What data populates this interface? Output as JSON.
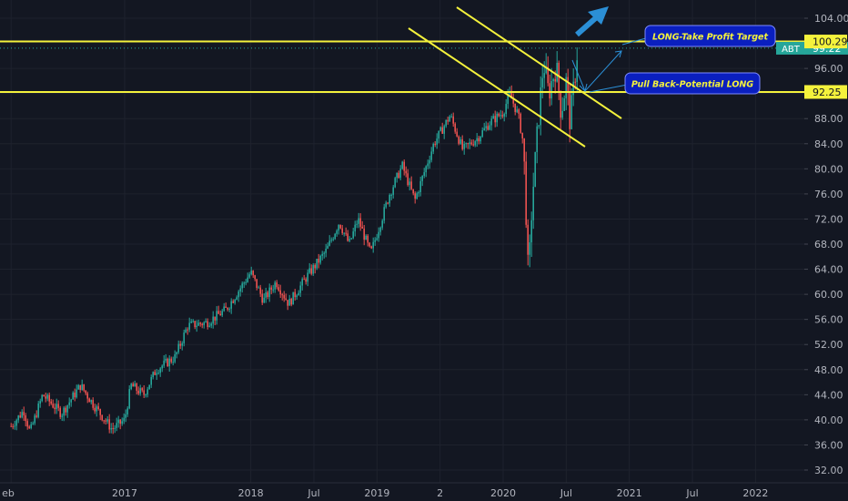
{
  "chart_data": {
    "type": "candlestick",
    "symbol": "ABT",
    "last_price": "99.22",
    "y_range": [
      30.0,
      106.0
    ],
    "y_ticks": [
      "104.00",
      "96.00",
      "92.00",
      "88.00",
      "84.00",
      "80.00",
      "76.00",
      "72.00",
      "68.00",
      "64.00",
      "60.00",
      "56.00",
      "52.00",
      "48.00",
      "44.00",
      "40.00",
      "36.00",
      "32.00"
    ],
    "x_ticks": [
      "eb",
      "2017",
      "2018",
      "Jul",
      "2019",
      "2",
      "2020",
      "Jul",
      "2021",
      "Jul",
      "2022"
    ],
    "x_tick_dates": [
      2016.1,
      2017.0,
      2018.0,
      2018.5,
      2019.0,
      2019.5,
      2020.0,
      2020.5,
      2021.0,
      2021.5,
      2022.0
    ],
    "levels": [
      {
        "label": "100.29",
        "value": 100.29
      },
      {
        "label": "92.25",
        "value": 92.25
      }
    ],
    "price_path": [
      [
        2016.1,
        39.0
      ],
      [
        2016.2,
        41.5
      ],
      [
        2016.25,
        38.0
      ],
      [
        2016.35,
        44.0
      ],
      [
        2016.5,
        41.0
      ],
      [
        2016.65,
        45.5
      ],
      [
        2016.75,
        42.5
      ],
      [
        2016.9,
        38.5
      ],
      [
        2017.0,
        40.0
      ],
      [
        2017.05,
        45.5
      ],
      [
        2017.15,
        44.0
      ],
      [
        2017.25,
        48.0
      ],
      [
        2017.4,
        50.0
      ],
      [
        2017.5,
        55.0
      ],
      [
        2017.65,
        55.5
      ],
      [
        2017.8,
        57.5
      ],
      [
        2017.9,
        60.5
      ],
      [
        2018.0,
        63.5
      ],
      [
        2018.1,
        59.0
      ],
      [
        2018.2,
        62.0
      ],
      [
        2018.3,
        58.5
      ],
      [
        2018.45,
        63.0
      ],
      [
        2018.6,
        67.0
      ],
      [
        2018.7,
        71.5
      ],
      [
        2018.78,
        68.0
      ],
      [
        2018.85,
        72.0
      ],
      [
        2018.95,
        66.5
      ],
      [
        2019.1,
        76.0
      ],
      [
        2019.2,
        80.5
      ],
      [
        2019.3,
        75.0
      ],
      [
        2019.45,
        84.0
      ],
      [
        2019.58,
        88.5
      ],
      [
        2019.68,
        83.0
      ],
      [
        2019.8,
        85.0
      ],
      [
        2019.9,
        87.5
      ],
      [
        2020.0,
        89.0
      ],
      [
        2020.05,
        92.0
      ],
      [
        2020.12,
        88.5
      ],
      [
        2020.16,
        84.0
      ],
      [
        2020.18,
        74.0
      ],
      [
        2020.2,
        62.0
      ],
      [
        2020.23,
        75.0
      ],
      [
        2020.28,
        88.0
      ],
      [
        2020.32,
        97.0
      ],
      [
        2020.36,
        92.0
      ],
      [
        2020.42,
        96.5
      ],
      [
        2020.46,
        89.0
      ],
      [
        2020.5,
        94.0
      ],
      [
        2020.53,
        87.5
      ],
      [
        2020.56,
        93.0
      ],
      [
        2020.59,
        99.2
      ]
    ],
    "annotations": [
      {
        "text": "LONG-Take Profit Target"
      },
      {
        "text": "Pull Back-Potential LONG"
      }
    ]
  },
  "colors": {
    "background": "#131722",
    "grid": "#1e222d",
    "up": "#26a69a",
    "down": "#ef5350",
    "level": "#f4f23c",
    "arrow": "#2b8fd6",
    "label_bg": "#0a1fbf",
    "label_text": "#f4f23c",
    "axis_text": "#b2b5be",
    "last_price_bg": "#26a69a"
  }
}
